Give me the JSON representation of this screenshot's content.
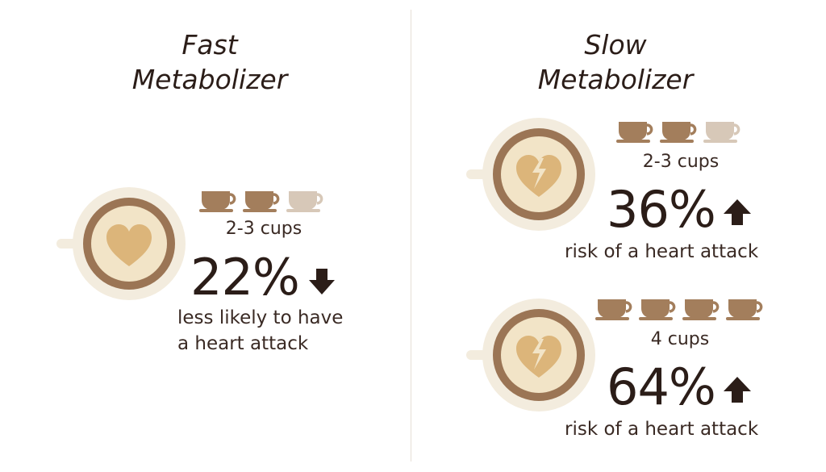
{
  "colors": {
    "dark_brown": "#2b1d18",
    "cup_full": "#a37e5c",
    "cup_light": "#d7c8b8",
    "saucer": "#f3ecde",
    "rim": "#9b7555",
    "foam": "#f2e4c7",
    "heart": "#dcb57a",
    "divider": "#e6dfd6"
  },
  "fast": {
    "title_line1": "Fast",
    "title_line2": "Metabolizer",
    "icon": "heart-icon",
    "cups_filled": 2,
    "cups_total": 3,
    "cups_label": "2-3 cups",
    "percent": "22%",
    "direction": "down",
    "caption_line1": "less likely to have",
    "caption_line2": "a heart attack"
  },
  "slow": {
    "title_line1": "Slow",
    "title_line2": "Metabolizer",
    "icon": "broken-heart-icon",
    "stats": [
      {
        "cups_filled": 2,
        "cups_total": 3,
        "cups_label": "2-3 cups",
        "percent": "36%",
        "direction": "up",
        "caption": "risk of a heart attack"
      },
      {
        "cups_filled": 4,
        "cups_total": 4,
        "cups_label": "4 cups",
        "percent": "64%",
        "direction": "up",
        "caption": "risk of a heart attack"
      }
    ]
  }
}
